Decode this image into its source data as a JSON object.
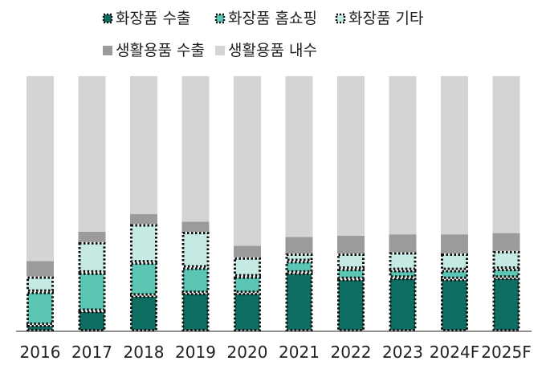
{
  "chart_data": {
    "type": "bar",
    "stacked": true,
    "categories": [
      "2016",
      "2017",
      "2018",
      "2019",
      "2020",
      "2021",
      "2022",
      "2023",
      "2024F",
      "2025F"
    ],
    "series": [
      {
        "name": "화장품 수출",
        "color": "#0f6e62",
        "pattern": "dotted-border",
        "values": [
          2.5,
          8,
          14,
          15,
          15,
          23,
          20.5,
          21,
          20.5,
          21
        ]
      },
      {
        "name": "화장품 홈쇼핑",
        "color": "#5cc6b4",
        "pattern": "dotted-border",
        "values": [
          13,
          15,
          13,
          10,
          6.5,
          4.5,
          4,
          3,
          3.5,
          3.5
        ]
      },
      {
        "name": "화장품 기타",
        "color": "#c5eae3",
        "pattern": "dotted-border",
        "values": [
          6,
          12,
          15,
          14,
          7.5,
          3,
          6,
          7,
          6.5,
          7
        ]
      },
      {
        "name": "생활용품 수출",
        "color": "#9b9b9b",
        "pattern": "solid",
        "values": [
          6,
          4,
          4,
          4,
          4.5,
          6.5,
          7,
          7,
          7.5,
          7
        ]
      },
      {
        "name": "생활용품 내수",
        "color": "#d4d4d4",
        "pattern": "solid",
        "values": [
          72.5,
          61,
          54,
          57,
          66.5,
          63,
          62.5,
          62,
          62,
          61.5
        ]
      }
    ],
    "ylim": [
      0,
      100
    ],
    "grid": false,
    "y_axis_visible": false,
    "legend_position": "top"
  }
}
